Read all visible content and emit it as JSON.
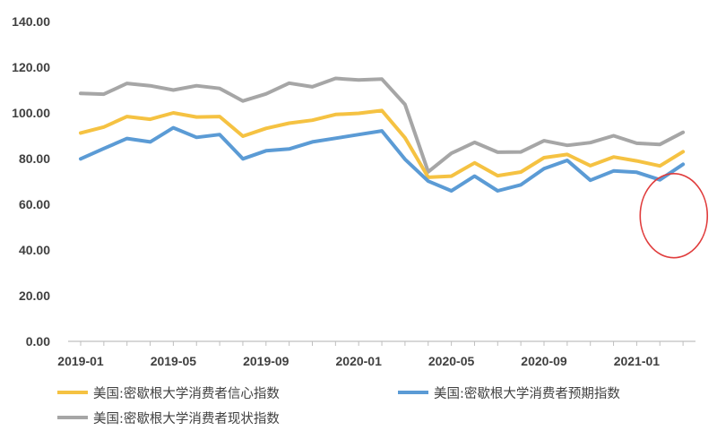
{
  "chart_data": {
    "type": "line",
    "title": "",
    "xlabel": "",
    "ylabel": "",
    "ylim": [
      0,
      140
    ],
    "yticks": [
      "0.00",
      "20.00",
      "40.00",
      "60.00",
      "80.00",
      "100.00",
      "120.00",
      "140.00"
    ],
    "x_tick_labels": [
      {
        "index": 0,
        "label": "2019-01"
      },
      {
        "index": 4,
        "label": "2019-05"
      },
      {
        "index": 8,
        "label": "2019-09"
      },
      {
        "index": 12,
        "label": "2020-01"
      },
      {
        "index": 16,
        "label": "2020-05"
      },
      {
        "index": 20,
        "label": "2020-09"
      },
      {
        "index": 24,
        "label": "2021-01"
      }
    ],
    "x": [
      "2019-01",
      "2019-02",
      "2019-03",
      "2019-04",
      "2019-05",
      "2019-06",
      "2019-07",
      "2019-08",
      "2019-09",
      "2019-10",
      "2019-11",
      "2019-12",
      "2020-01",
      "2020-02",
      "2020-03",
      "2020-04",
      "2020-05",
      "2020-06",
      "2020-07",
      "2020-08",
      "2020-09",
      "2020-10",
      "2020-11",
      "2020-12",
      "2021-01",
      "2021-02",
      "2021-03"
    ],
    "series": [
      {
        "name": "美国:密歇根大学消费者现状指数",
        "color": "#a6a6a6",
        "values": [
          108.5,
          108.2,
          112.9,
          111.9,
          110.0,
          111.9,
          110.7,
          105.2,
          108.3,
          113.0,
          111.4,
          115.1,
          114.4,
          114.8,
          103.7,
          74.2,
          82.3,
          87.1,
          82.8,
          82.9,
          87.8,
          85.8,
          87.0,
          90.0,
          86.7,
          86.2,
          91.5
        ]
      },
      {
        "name": "美国:密歇根大学消费者信心指数",
        "color": "#f5c242",
        "values": [
          91.2,
          93.8,
          98.4,
          97.2,
          100.0,
          98.2,
          98.4,
          89.8,
          93.2,
          95.5,
          96.8,
          99.3,
          99.8,
          101.0,
          89.1,
          71.8,
          72.3,
          78.1,
          72.5,
          74.1,
          80.4,
          81.8,
          76.9,
          80.7,
          79.0,
          76.8,
          83.0
        ]
      },
      {
        "name": "美国:密歇根大学消费者预期指数",
        "color": "#5b9bd5",
        "values": [
          79.9,
          84.4,
          88.8,
          87.3,
          93.5,
          89.3,
          90.5,
          79.9,
          83.4,
          84.2,
          87.3,
          88.9,
          90.5,
          92.1,
          79.7,
          70.1,
          65.9,
          72.3,
          65.9,
          68.5,
          75.6,
          79.2,
          70.5,
          74.6,
          74.0,
          70.7,
          77.5
        ]
      }
    ],
    "legend": [
      {
        "label": "美国:密歇根大学消费者信心指数",
        "color": "#f5c242"
      },
      {
        "label": "美国:密歇根大学消费者预期指数",
        "color": "#5b9bd5"
      },
      {
        "label": "美国:密歇根大学消费者现状指数",
        "color": "#a6a6a6"
      }
    ],
    "annotations": [
      {
        "type": "ellipse",
        "color": "#e03c3c",
        "x_index_center": 25.6,
        "y_center": 55,
        "x_index_rx": 1.45,
        "y_ry": 18.4
      }
    ],
    "grid": false,
    "legend_position": "bottom"
  }
}
